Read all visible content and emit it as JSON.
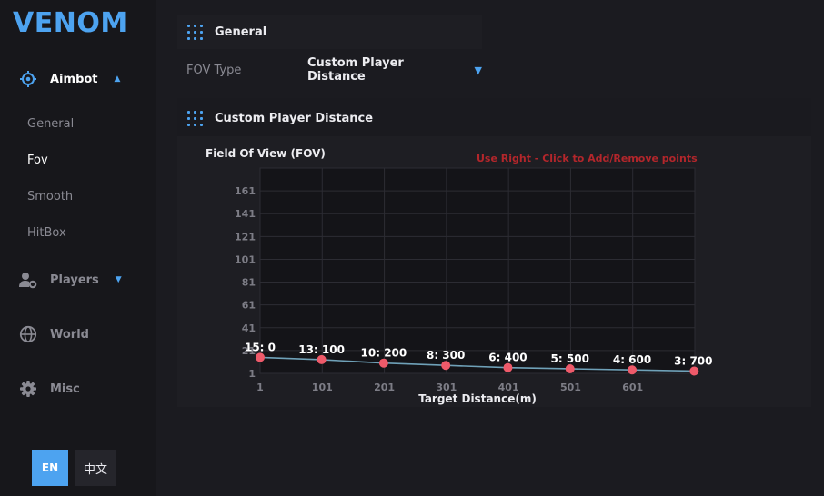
{
  "app": {
    "title": "VENOM"
  },
  "sidebar": {
    "items": [
      {
        "label": "Aimbot",
        "icon": "crosshair-icon",
        "caret": "▲",
        "expanded": true
      },
      {
        "label": "Players",
        "icon": "user-gear-icon",
        "caret": "▼",
        "expanded": false
      },
      {
        "label": "World",
        "icon": "globe-icon"
      },
      {
        "label": "Misc",
        "icon": "gear-icon"
      }
    ],
    "sub_items": [
      {
        "label": "General",
        "active": false
      },
      {
        "label": "Fov",
        "active": true
      },
      {
        "label": "Smooth",
        "active": false
      },
      {
        "label": "HitBox",
        "active": false
      }
    ]
  },
  "language": {
    "en": "EN",
    "zh": "中文",
    "selected": "EN"
  },
  "general_panel": {
    "title": "General",
    "fov_type_label": "FOV Type",
    "fov_type_value": "Custom Player Distance",
    "caret": "▼"
  },
  "custom_panel": {
    "title": "Custom Player Distance",
    "chart_title": "Field Of View (FOV)",
    "hint": "Use Right - Click to Add/Remove points"
  },
  "colors": {
    "accent": "#4da3f0",
    "point": "#ee5a6a",
    "line": "#6fa1b8",
    "hint": "#b3262b"
  },
  "chart_data": {
    "type": "line",
    "title": "Field Of View (FOV)",
    "xlabel": "Target Distance(m)",
    "ylabel": "",
    "x_ticks": [
      "1",
      "101",
      "201",
      "301",
      "401",
      "501",
      "601"
    ],
    "y_ticks": [
      "1",
      "21",
      "41",
      "61",
      "81",
      "101",
      "121",
      "141",
      "161"
    ],
    "xlim": [
      1,
      701
    ],
    "ylim": [
      1,
      181
    ],
    "grid": true,
    "series": [
      {
        "points": [
          {
            "x": 0,
            "y": 15,
            "label": "15: 0"
          },
          {
            "x": 100,
            "y": 13,
            "label": "13: 100"
          },
          {
            "x": 200,
            "y": 10,
            "label": "10: 200"
          },
          {
            "x": 300,
            "y": 8,
            "label": "8: 300"
          },
          {
            "x": 400,
            "y": 6,
            "label": "6: 400"
          },
          {
            "x": 500,
            "y": 5,
            "label": "5: 500"
          },
          {
            "x": 600,
            "y": 4,
            "label": "4: 600"
          },
          {
            "x": 700,
            "y": 3,
            "label": "3: 700"
          }
        ]
      }
    ]
  }
}
